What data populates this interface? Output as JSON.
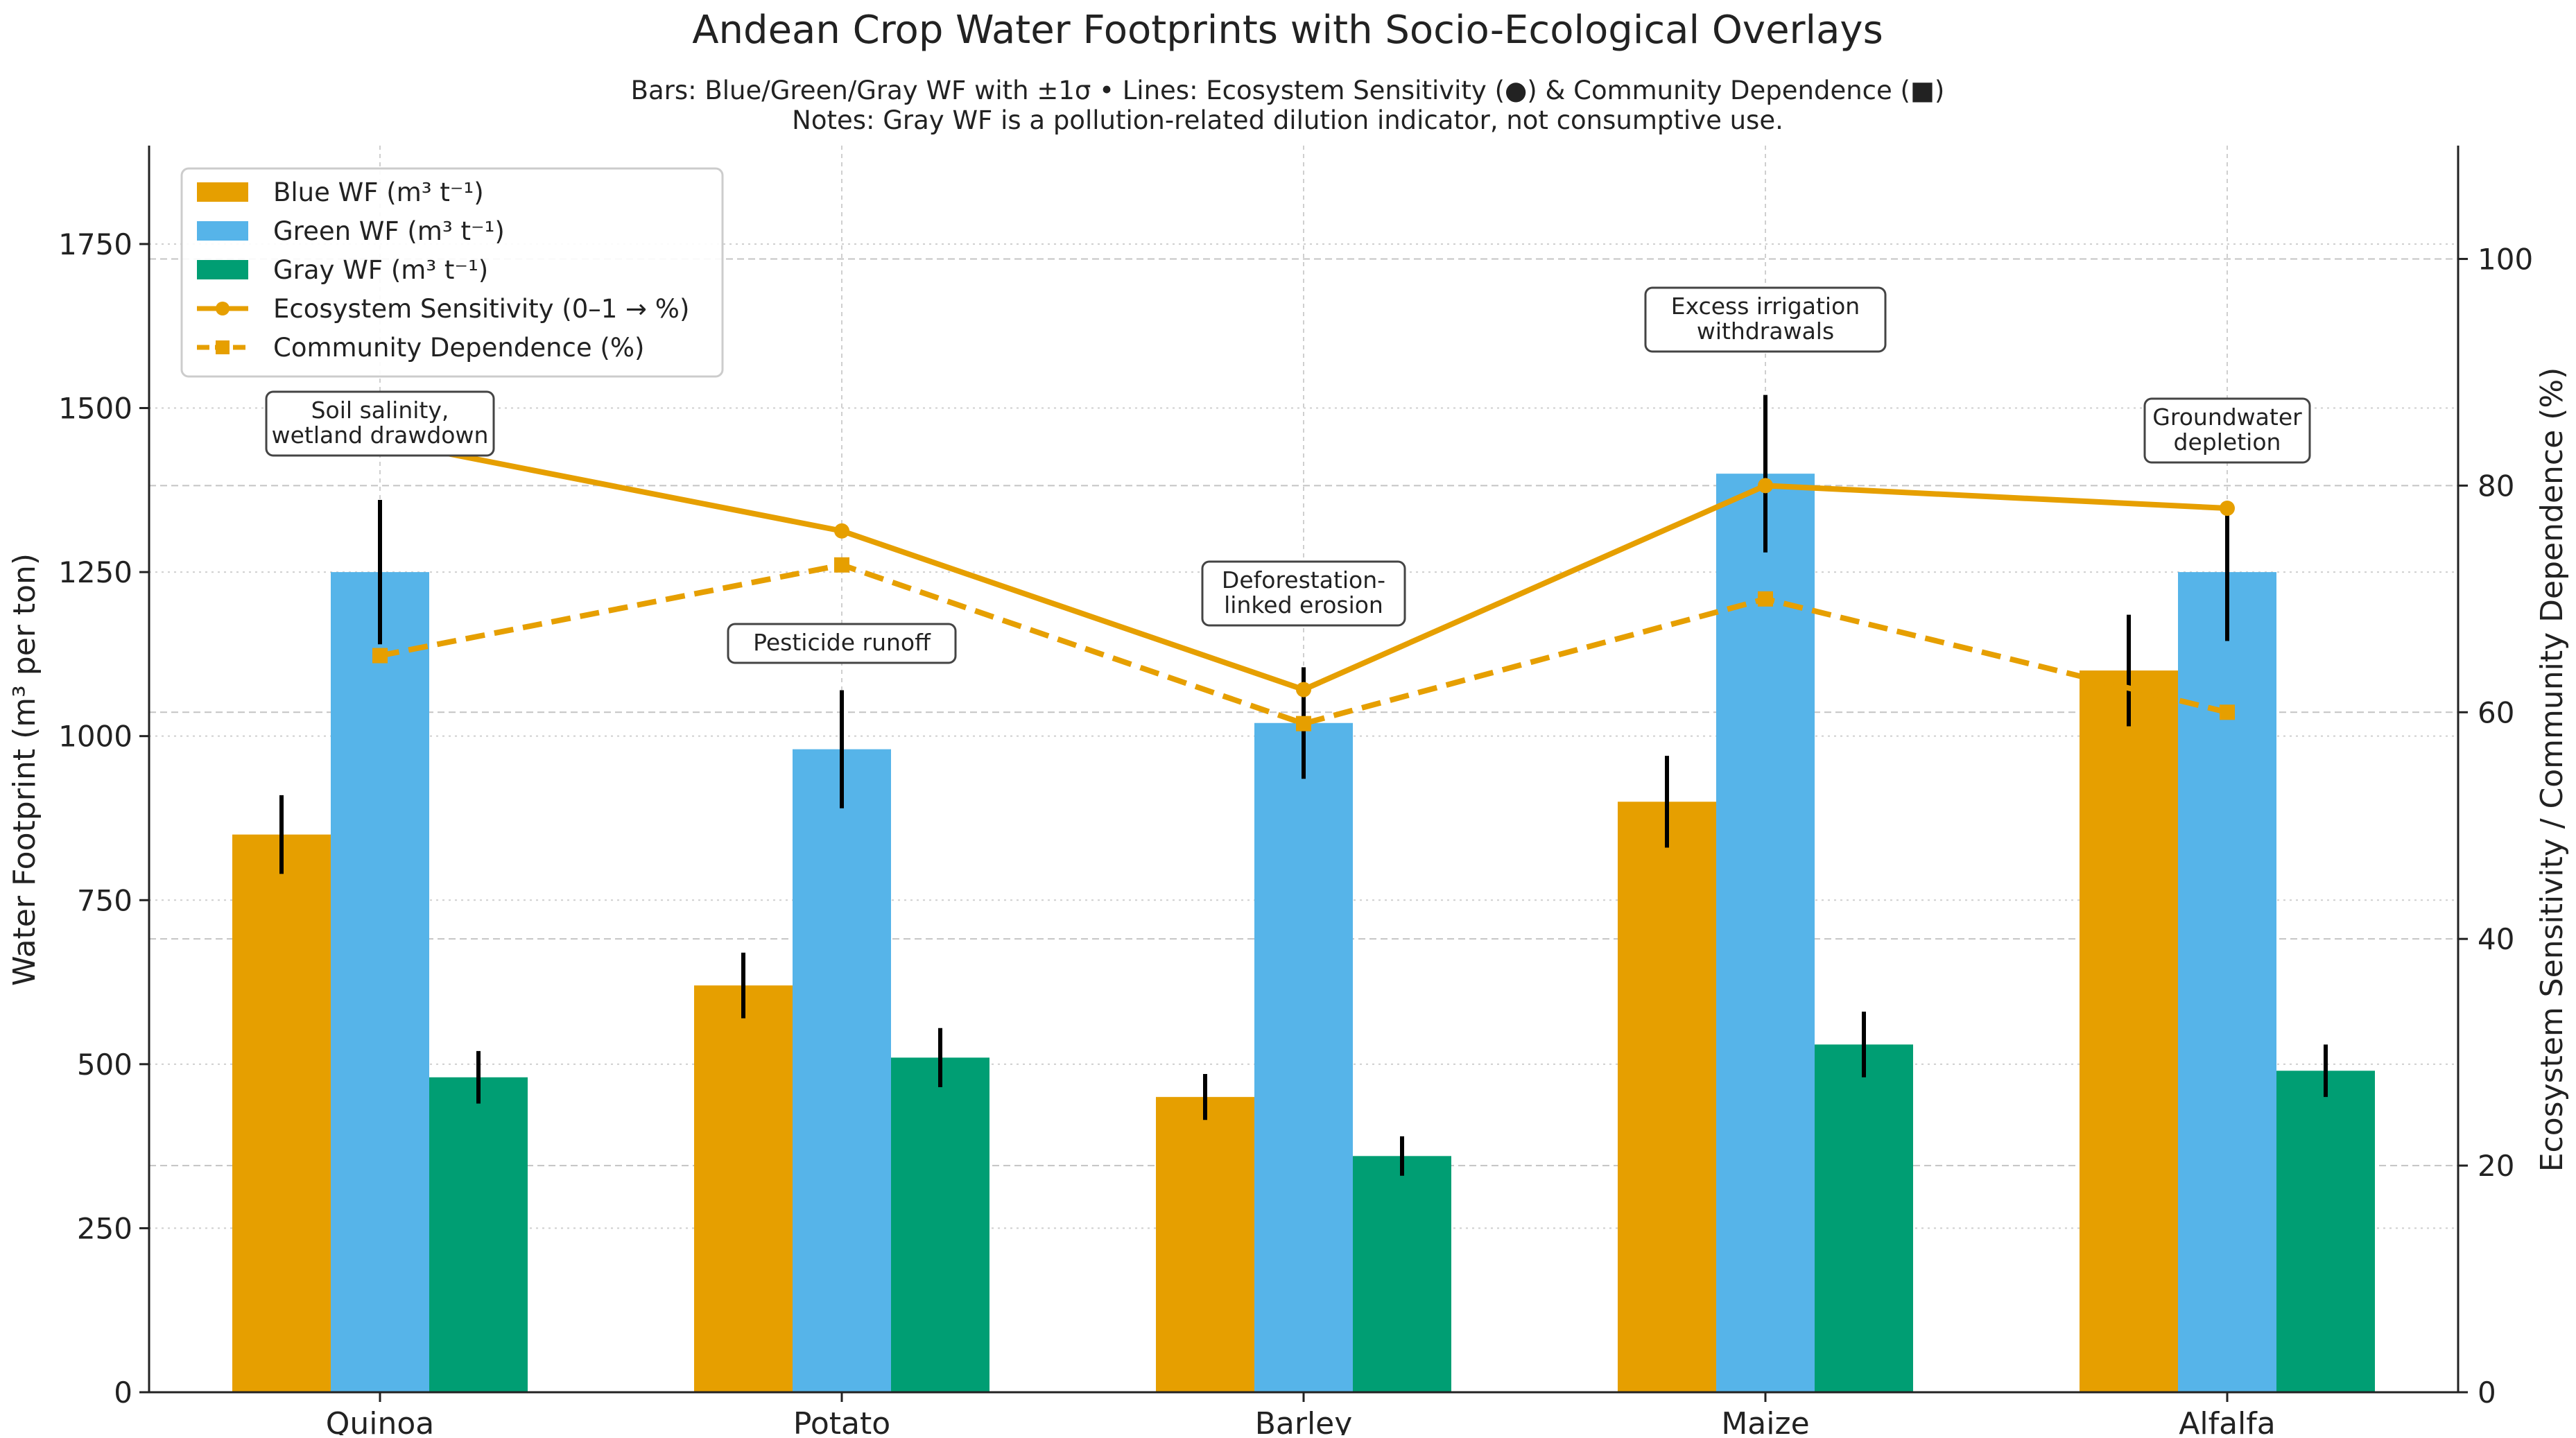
{
  "chart_data": {
    "type": "bar",
    "title": "Andean Crop Water Footprints with Socio-Ecological Overlays",
    "subtitle_lines": [
      "Bars: Blue/Green/Gray WF with ±1σ • Lines: Ecosystem Sensitivity (●) & Community Dependence (■)",
      "Notes: Gray WF is a pollution-related dilution indicator, not consumptive use."
    ],
    "categories": [
      "Quinoa",
      "Potato",
      "Barley",
      "Maize",
      "Alfalfa"
    ],
    "ylabel": "Water Footprint (m³ per ton)",
    "ylabel_right": "Ecosystem Sensitivity / Community Dependence (%)",
    "ylim": [
      0,
      1900
    ],
    "ylim_right": [
      0,
      110
    ],
    "yticks": [
      "0",
      "250",
      "500",
      "750",
      "1000",
      "1250",
      "1500",
      "1750"
    ],
    "yticks_right": [
      "0",
      "20",
      "40",
      "60",
      "80",
      "100"
    ],
    "grid": true,
    "legend_position": "top-left",
    "series": [
      {
        "name": "Blue WF (m³ t⁻¹)",
        "kind": "bar",
        "axis": "left",
        "color": "#E69F00",
        "values": [
          850,
          620,
          450,
          900,
          1100
        ],
        "errors": [
          60,
          50,
          35,
          70,
          85
        ]
      },
      {
        "name": "Green WF (m³ t⁻¹)",
        "kind": "bar",
        "axis": "left",
        "color": "#56B4E9",
        "values": [
          1250,
          980,
          1020,
          1400,
          1250
        ],
        "errors": [
          110,
          90,
          85,
          120,
          105
        ]
      },
      {
        "name": "Gray WF (m³ t⁻¹)",
        "kind": "bar",
        "axis": "left",
        "color": "#009E73",
        "values": [
          480,
          510,
          360,
          530,
          490
        ],
        "errors": [
          40,
          45,
          30,
          50,
          40
        ]
      },
      {
        "name": "Ecosystem Sensitivity (0–1 → %)",
        "kind": "line",
        "axis": "right",
        "color": "#E69F00",
        "style": "solid",
        "marker": "circle",
        "values": [
          84,
          76,
          62,
          80,
          78
        ]
      },
      {
        "name": "Community Dependence (%)",
        "kind": "line",
        "axis": "right",
        "color": "#E69F00",
        "style": "dashed",
        "marker": "square",
        "values": [
          65,
          73,
          59,
          70,
          60
        ]
      }
    ],
    "annotations": [
      {
        "category": "Quinoa",
        "lines": [
          "Soil salinity,",
          "wetland drawdown"
        ]
      },
      {
        "category": "Potato",
        "lines": [
          "Pesticide runoff"
        ]
      },
      {
        "category": "Barley",
        "lines": [
          "Deforestation-",
          "linked erosion"
        ]
      },
      {
        "category": "Maize",
        "lines": [
          "Excess irrigation",
          "withdrawals"
        ]
      },
      {
        "category": "Alfalfa",
        "lines": [
          "Groundwater",
          "depletion"
        ]
      }
    ]
  }
}
